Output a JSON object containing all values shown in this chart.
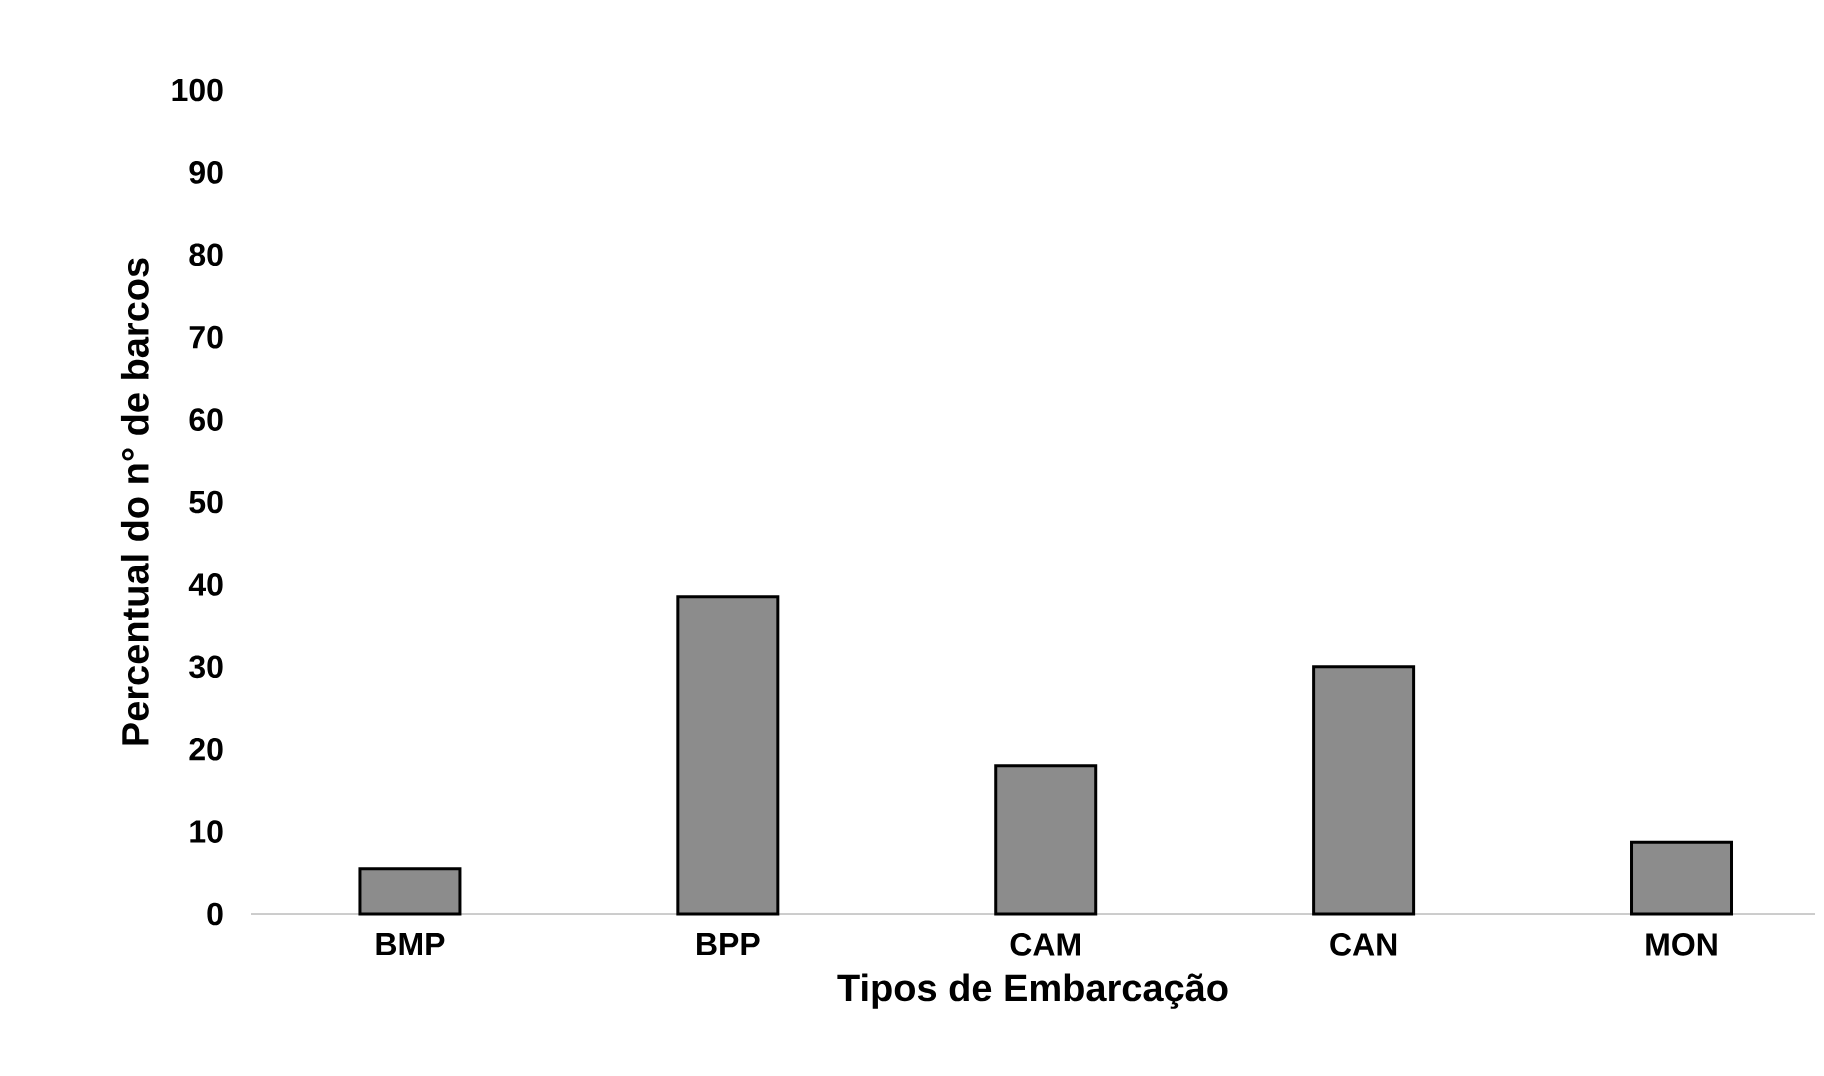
{
  "chart_data": {
    "type": "bar",
    "xlabel": "Tipos de Embarcação",
    "ylabel": "Percentual do n° de barcos",
    "categories": [
      "BMP",
      "BPP",
      "CAM",
      "CAN",
      "MON"
    ],
    "values": [
      5.5,
      38.5,
      18,
      30,
      8.7
    ],
    "color": "#8c8c8c",
    "ylim": [
      0,
      100
    ],
    "yticks": [
      0,
      10,
      20,
      30,
      40,
      50,
      60,
      70,
      80,
      90,
      100
    ]
  }
}
